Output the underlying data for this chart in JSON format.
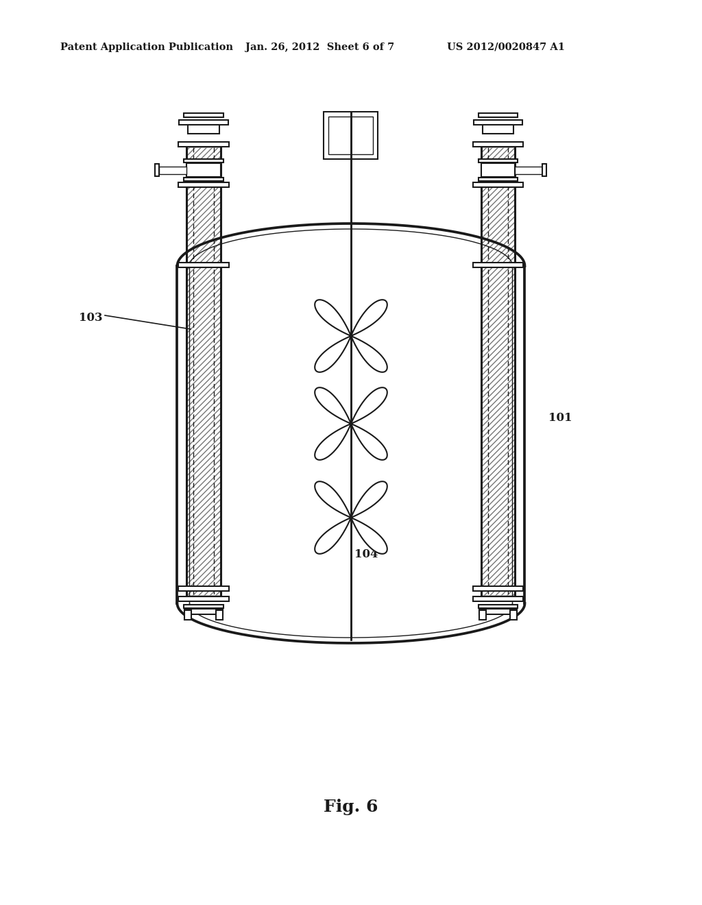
{
  "header_left": "Patent Application Publication",
  "header_mid": "Jan. 26, 2012  Sheet 6 of 7",
  "header_right": "US 2012/0020847 A1",
  "fig_label": "Fig. 6",
  "label_101": "101",
  "label_103": "103",
  "label_104": "104",
  "bg_color": "#ffffff",
  "line_color": "#1a1a1a"
}
